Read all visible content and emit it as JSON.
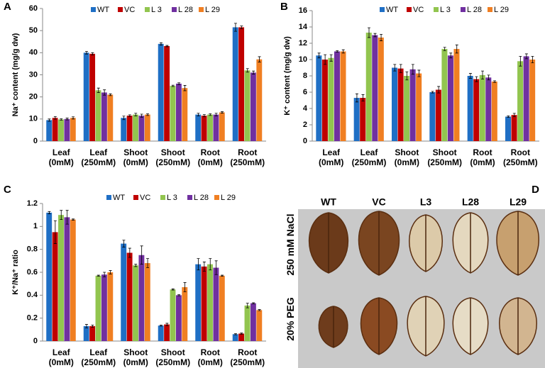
{
  "chart_data": [
    {
      "type": "bar",
      "panel": "A",
      "y_label": "Na⁺ content (mg/g dw)",
      "categories": [
        "Leaf (0mM)",
        "Leaf (250mM)",
        "Shoot (0mM)",
        "Shoot (250mM)",
        "Root (0mM)",
        "Root (250mM)"
      ],
      "ylim": [
        0,
        60
      ],
      "yticks": [
        0,
        10,
        20,
        30,
        40,
        50,
        60
      ],
      "series": [
        {
          "name": "WT",
          "color": "#1f6fc5",
          "values": [
            9.5,
            40,
            10.5,
            44,
            12,
            51.5
          ],
          "errors": [
            0.5,
            0.6,
            0.8,
            0.5,
            0.6,
            1.8
          ]
        },
        {
          "name": "VC",
          "color": "#c00000",
          "values": [
            10.5,
            39.5,
            11.5,
            43,
            11.5,
            51.5
          ],
          "errors": [
            0.6,
            0.5,
            0.4,
            0.3,
            0.5,
            0.6
          ]
        },
        {
          "name": "L 3",
          "color": "#92c54f",
          "values": [
            9.8,
            23,
            12,
            25,
            12,
            32
          ],
          "errors": [
            0.3,
            1,
            0.6,
            0.3,
            0.4,
            0.8
          ]
        },
        {
          "name": "L 28",
          "color": "#7030a0",
          "values": [
            10,
            22,
            11.5,
            26,
            12,
            31
          ],
          "errors": [
            0.4,
            1.2,
            0.7,
            0.4,
            0.6,
            0.7
          ]
        },
        {
          "name": "L 29",
          "color": "#f07f22",
          "values": [
            10.5,
            21,
            12,
            24,
            13,
            37
          ],
          "errors": [
            0.5,
            0.4,
            0.4,
            1.2,
            0.3,
            1.2
          ]
        }
      ]
    },
    {
      "type": "bar",
      "panel": "B",
      "y_label": "K⁺ content (mg/g dw)",
      "categories": [
        "Leaf (0mM)",
        "Leaf (250mM)",
        "Shoot (0mM)",
        "Shoot (250mM)",
        "Root (0mM)",
        "Root (250mM)"
      ],
      "ylim": [
        0,
        16
      ],
      "yticks": [
        0,
        2,
        4,
        6,
        8,
        10,
        12,
        14,
        16
      ],
      "series": [
        {
          "name": "WT",
          "color": "#1f6fc5",
          "values": [
            10.5,
            5.3,
            9,
            6,
            8,
            3
          ],
          "errors": [
            0.3,
            0.5,
            0.4,
            0.1,
            0.3,
            0.1
          ]
        },
        {
          "name": "VC",
          "color": "#c00000",
          "values": [
            10,
            5.3,
            8.9,
            6.3,
            7.6,
            3.2
          ],
          "errors": [
            0.6,
            0.4,
            0.5,
            0.4,
            0.3,
            0.2
          ]
        },
        {
          "name": "L 3",
          "color": "#92c54f",
          "values": [
            10.2,
            13.3,
            8,
            11.3,
            8.1,
            9.8
          ],
          "errors": [
            0.4,
            0.6,
            0.5,
            0.2,
            0.5,
            0.6
          ]
        },
        {
          "name": "L 28",
          "color": "#7030a0",
          "values": [
            11,
            13,
            8.8,
            10.5,
            7.8,
            10.4
          ],
          "errors": [
            0.1,
            0.2,
            0.6,
            0.3,
            0.3,
            0.3
          ]
        },
        {
          "name": "L 29",
          "color": "#f07f22",
          "values": [
            11,
            12.7,
            8.3,
            11.3,
            7.3,
            10
          ],
          "errors": [
            0.2,
            0.4,
            0.4,
            0.5,
            0.1,
            0.4
          ]
        }
      ]
    },
    {
      "type": "bar",
      "panel": "C",
      "y_label": "K⁺/Na⁺ ratio",
      "categories": [
        "Leaf (0mM)",
        "Leaf (250mM)",
        "Shoot (0mM)",
        "Shoot (250mM)",
        "Root (0mM)",
        "Root (250mM)"
      ],
      "ylim": [
        0,
        1.2
      ],
      "yticks": [
        0,
        0.2,
        0.4,
        0.6,
        0.8,
        1,
        1.2
      ],
      "series": [
        {
          "name": "WT",
          "color": "#1f6fc5",
          "values": [
            1.12,
            0.13,
            0.85,
            0.135,
            0.67,
            0.06
          ],
          "errors": [
            0.01,
            0.015,
            0.03,
            0.005,
            0.05,
            0.005
          ]
        },
        {
          "name": "VC",
          "color": "#c00000",
          "values": [
            0.95,
            0.13,
            0.77,
            0.145,
            0.65,
            0.065
          ],
          "errors": [
            0.1,
            0.01,
            0.04,
            0.01,
            0.04,
            0.005
          ]
        },
        {
          "name": "L 3",
          "color": "#92c54f",
          "values": [
            1.1,
            0.57,
            0.66,
            0.45,
            0.67,
            0.31
          ],
          "errors": [
            0.04,
            0.005,
            0.01,
            0.005,
            0.05,
            0.02
          ]
        },
        {
          "name": "L 28",
          "color": "#7030a0",
          "values": [
            1.08,
            0.58,
            0.75,
            0.4,
            0.64,
            0.33
          ],
          "errors": [
            0.06,
            0.02,
            0.08,
            0.005,
            0.06,
            0.005
          ]
        },
        {
          "name": "L 29",
          "color": "#f07f22",
          "values": [
            1.06,
            0.6,
            0.68,
            0.47,
            0.57,
            0.27
          ],
          "errors": [
            0.005,
            0.015,
            0.04,
            0.04,
            0.005,
            0.005
          ]
        }
      ]
    }
  ],
  "image_panel": {
    "panel": "D",
    "columns": [
      "WT",
      "VC",
      "L3",
      "L28",
      "L29"
    ],
    "rows": [
      "250 mM NaCl",
      "20% PEG"
    ]
  }
}
